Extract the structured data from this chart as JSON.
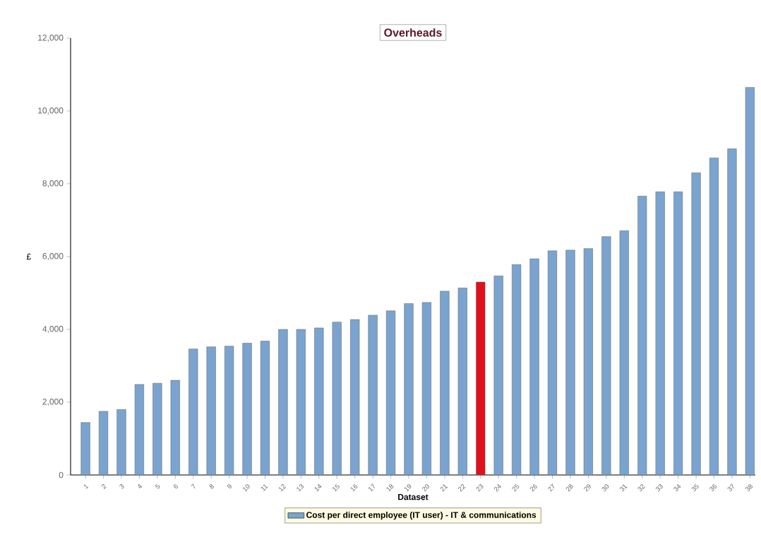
{
  "chart_data": {
    "type": "bar",
    "title": "Overheads",
    "xlabel": "Dataset",
    "ylabel": "£",
    "categories": [
      "1",
      "2",
      "3",
      "4",
      "5",
      "6",
      "7",
      "8",
      "9",
      "10",
      "11",
      "12",
      "13",
      "14",
      "15",
      "16",
      "17",
      "18",
      "19",
      "20",
      "21",
      "22",
      "23",
      "24",
      "25",
      "26",
      "27",
      "28",
      "29",
      "30",
      "31",
      "32",
      "33",
      "34",
      "35",
      "36",
      "37",
      "38"
    ],
    "series": [
      {
        "name": "Cost per direct employee (IT user) - IT & communications",
        "color": "#7aa4cf",
        "values": [
          1440,
          1750,
          1800,
          2490,
          2520,
          2600,
          3460,
          3520,
          3540,
          3620,
          3680,
          4000,
          4000,
          4040,
          4200,
          4270,
          4390,
          4510,
          4710,
          4740,
          5050,
          5140,
          5300,
          5470,
          5780,
          5940,
          6160,
          6180,
          6220,
          6550,
          6710,
          7660,
          7780,
          7780,
          8300,
          8710,
          8960,
          10650
        ],
        "colors": [
          "#7aa4cf",
          "#7aa4cf",
          "#7aa4cf",
          "#7aa4cf",
          "#7aa4cf",
          "#7aa4cf",
          "#7aa4cf",
          "#7aa4cf",
          "#7aa4cf",
          "#7aa4cf",
          "#7aa4cf",
          "#7aa4cf",
          "#7aa4cf",
          "#7aa4cf",
          "#7aa4cf",
          "#7aa4cf",
          "#7aa4cf",
          "#7aa4cf",
          "#7aa4cf",
          "#7aa4cf",
          "#7aa4cf",
          "#7aa4cf",
          "#e0101c",
          "#7aa4cf",
          "#7aa4cf",
          "#7aa4cf",
          "#7aa4cf",
          "#7aa4cf",
          "#7aa4cf",
          "#7aa4cf",
          "#7aa4cf",
          "#7aa4cf",
          "#7aa4cf",
          "#7aa4cf",
          "#7aa4cf",
          "#7aa4cf",
          "#7aa4cf",
          "#7aa4cf"
        ]
      }
    ],
    "ylim": [
      0,
      12000
    ],
    "yticks": [
      0,
      {
        "value": 2000,
        "label": "2,000"
      },
      {
        "value": 4000,
        "label": "4,000"
      },
      {
        "value": 6000,
        "label": "6,000"
      },
      {
        "value": 8000,
        "label": "8,000"
      },
      {
        "value": 10000,
        "label": "10,000"
      },
      {
        "value": 12000,
        "label": "12,000"
      }
    ],
    "grid": false,
    "legend": "bottom"
  }
}
